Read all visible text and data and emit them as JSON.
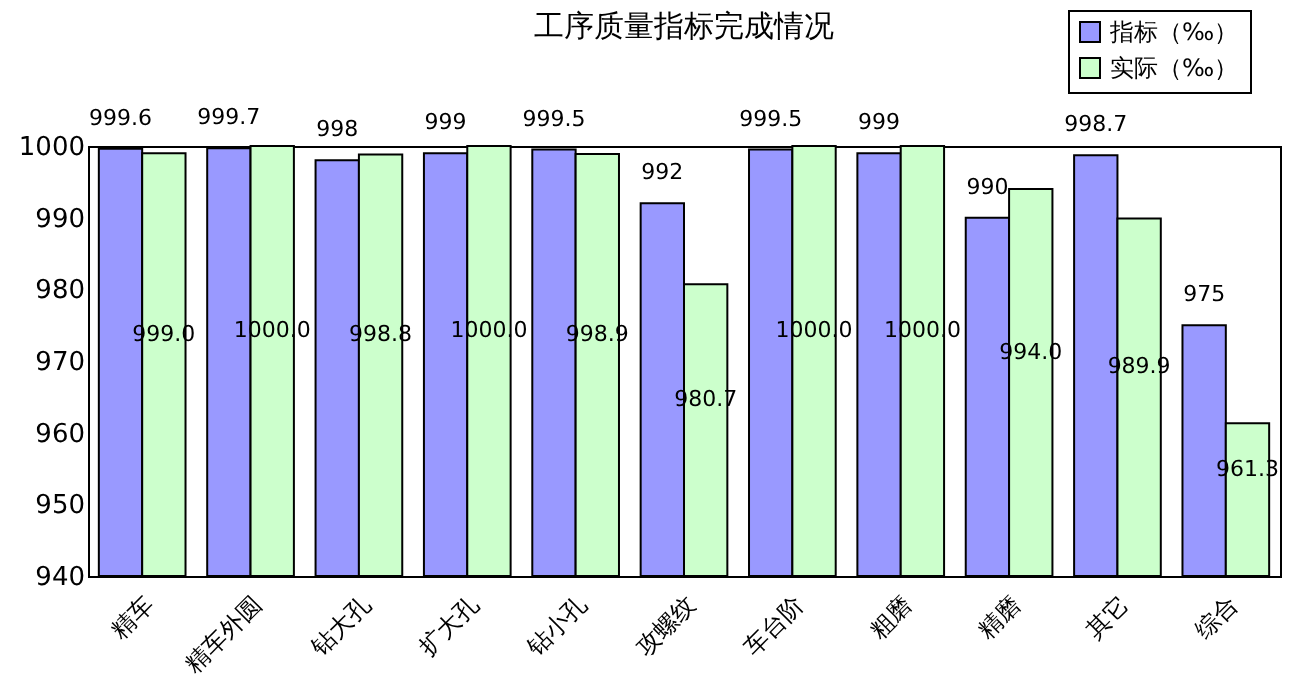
{
  "chart_data": {
    "type": "bar",
    "title": "工序质量指标完成情况",
    "categories": [
      "精车",
      "精车外圆",
      "钻大孔",
      "扩大孔",
      "钻小孔",
      "攻螺纹",
      "车台阶",
      "粗磨",
      "精磨",
      "其它",
      "综合"
    ],
    "series": [
      {
        "name": "指标（‰）",
        "color": "#9999ff",
        "values": [
          999.6,
          999.7,
          998,
          999,
          999.5,
          992,
          999.5,
          999,
          990,
          998.7,
          975
        ],
        "value_labels": [
          "999.6",
          "999.7",
          "998",
          "999",
          "999.5",
          "992",
          "999.5",
          "999",
          "990",
          "998.7",
          "975"
        ]
      },
      {
        "name": "实际（‰）",
        "color": "#ccffcc",
        "values": [
          999.0,
          1000.0,
          998.8,
          1000.0,
          998.9,
          980.7,
          1000.0,
          1000.0,
          994.0,
          989.9,
          961.3
        ],
        "value_labels": [
          "999.0",
          "1000.0",
          "998.8",
          "1000.0",
          "998.9",
          "980.7",
          "1000.0",
          "1000.0",
          "994.0",
          "989.9",
          "961.3"
        ]
      }
    ],
    "ylim": [
      940,
      1000
    ],
    "yticks": [
      940,
      950,
      960,
      970,
      980,
      990,
      1000
    ],
    "grid": false,
    "legend": "top right"
  }
}
